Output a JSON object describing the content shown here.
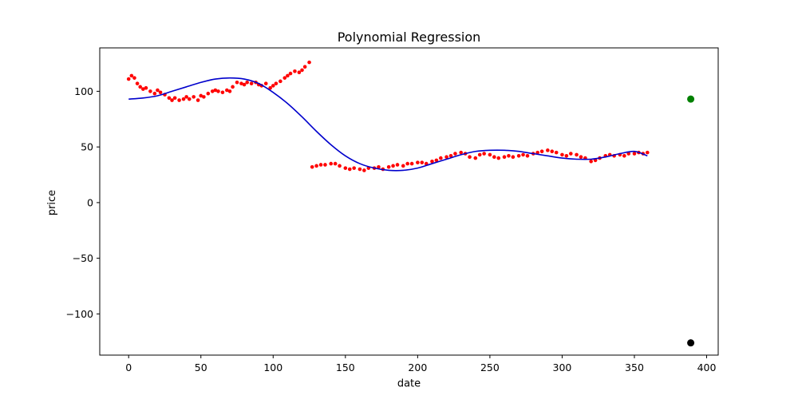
{
  "chart_data": {
    "type": "scatter",
    "title": "Polynomial Regression",
    "xlabel": "date",
    "ylabel": "price",
    "xlim": [
      -20,
      408
    ],
    "ylim": [
      -137,
      139
    ],
    "grid": false,
    "x_ticks": [
      0,
      50,
      100,
      150,
      200,
      250,
      300,
      350,
      400
    ],
    "y_ticks": [
      -100,
      -50,
      0,
      50,
      100
    ],
    "x_tick_labels": [
      "0",
      "50",
      "100",
      "150",
      "200",
      "250",
      "300",
      "350",
      "400"
    ],
    "y_tick_labels": [
      "−100",
      "−50",
      "0",
      "50",
      "100"
    ],
    "colors": {
      "scatter": "#ff0000",
      "fit_line": "#0000cc",
      "prediction_point": "#008000",
      "actual_point": "#000000",
      "axes": "#000000"
    },
    "series": [
      {
        "kind": "scatter",
        "x": [
          0,
          2,
          4,
          6,
          8,
          10,
          12,
          15,
          18,
          20,
          22,
          25,
          28,
          30,
          32,
          35,
          38,
          40,
          42,
          45,
          48,
          50,
          52,
          55,
          58,
          60,
          62,
          65,
          68,
          70,
          72,
          75,
          78,
          80,
          82,
          85,
          88,
          90,
          92,
          95,
          98,
          100,
          102,
          105,
          108,
          110,
          112,
          115,
          118,
          120,
          122,
          125,
          127,
          130,
          133,
          136,
          140,
          143,
          146,
          150,
          153,
          156,
          160,
          163,
          166,
          170,
          173,
          176,
          180,
          183,
          186,
          190,
          193,
          196,
          200,
          203,
          206,
          210,
          213,
          216,
          220,
          223,
          226,
          230,
          233,
          236,
          240,
          243,
          246,
          250,
          253,
          256,
          260,
          263,
          266,
          270,
          273,
          276,
          280,
          283,
          286,
          290,
          293,
          296,
          300,
          303,
          306,
          310,
          313,
          316,
          320,
          323,
          326,
          330,
          333,
          336,
          340,
          343,
          346,
          350,
          353,
          356,
          359
        ],
        "y": [
          111,
          114,
          112,
          107,
          104,
          102,
          103,
          100,
          98,
          101,
          99,
          97,
          94,
          92,
          94,
          92,
          93,
          95,
          93,
          95,
          92,
          96,
          95,
          98,
          100,
          101,
          100,
          99,
          101,
          100,
          104,
          108,
          107,
          106,
          108,
          107,
          108,
          106,
          105,
          107,
          103,
          105,
          107,
          109,
          112,
          114,
          116,
          118,
          117,
          119,
          122,
          126,
          32,
          33,
          34,
          34,
          35,
          35,
          33,
          31,
          30,
          31,
          30,
          29,
          31,
          31,
          32,
          30,
          32,
          33,
          34,
          33,
          35,
          35,
          36,
          36,
          35,
          37,
          38,
          40,
          41,
          42,
          44,
          45,
          44,
          41,
          40,
          43,
          44,
          43,
          41,
          40,
          41,
          42,
          41,
          42,
          43,
          42,
          44,
          45,
          46,
          47,
          46,
          45,
          43,
          42,
          44,
          43,
          41,
          40,
          37,
          38,
          40,
          42,
          43,
          42,
          43,
          42,
          44,
          44,
          45,
          44,
          45
        ]
      },
      {
        "kind": "line",
        "x": [
          0,
          10,
          20,
          30,
          40,
          50,
          60,
          70,
          80,
          90,
          100,
          110,
          120,
          130,
          140,
          150,
          160,
          170,
          180,
          190,
          200,
          210,
          220,
          230,
          240,
          250,
          260,
          270,
          280,
          290,
          300,
          310,
          320,
          330,
          340,
          350,
          359
        ],
        "y": [
          93,
          94,
          96,
          100,
          104,
          108,
          111,
          112,
          111,
          107,
          99,
          89,
          77,
          64,
          52,
          42,
          35,
          31,
          29,
          29,
          31,
          35,
          39,
          43,
          46,
          47,
          47,
          46,
          44,
          42,
          40,
          39,
          39,
          41,
          44,
          46,
          42
        ]
      },
      {
        "kind": "point",
        "x": [
          389
        ],
        "y": [
          93
        ]
      },
      {
        "kind": "point",
        "x": [
          389
        ],
        "y": [
          -126
        ]
      }
    ]
  }
}
